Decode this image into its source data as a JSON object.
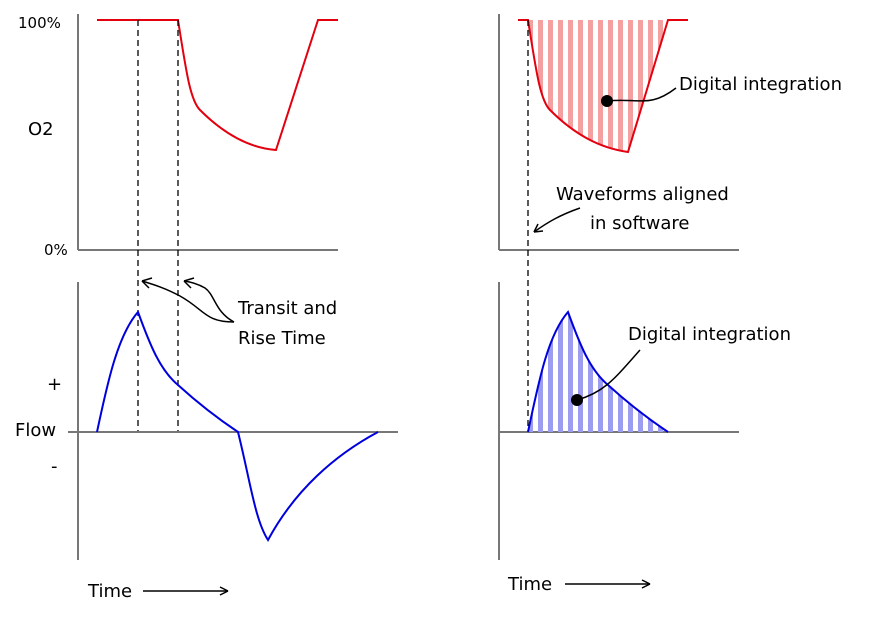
{
  "left_panel": {
    "y_top_label": "100%",
    "y_mid_label": "O2",
    "y_bottom_label": "0%",
    "flow_plus": "+",
    "flow_label": "Flow",
    "flow_minus": "-",
    "annotation_line1": "Transit and",
    "annotation_line2": "Rise Time",
    "time_label": "Time"
  },
  "right_panel": {
    "top_annotation": "Digital integration",
    "aligned_line1": "Waveforms aligned",
    "aligned_line2": "in software",
    "bottom_annotation": "Digital integration",
    "time_label": "Time"
  },
  "colors": {
    "o2": "#e3000f",
    "o2_fill": "#f4a0a0",
    "flow": "#0000dd",
    "flow_fill": "#9c9cf0",
    "axis": "#777777"
  }
}
